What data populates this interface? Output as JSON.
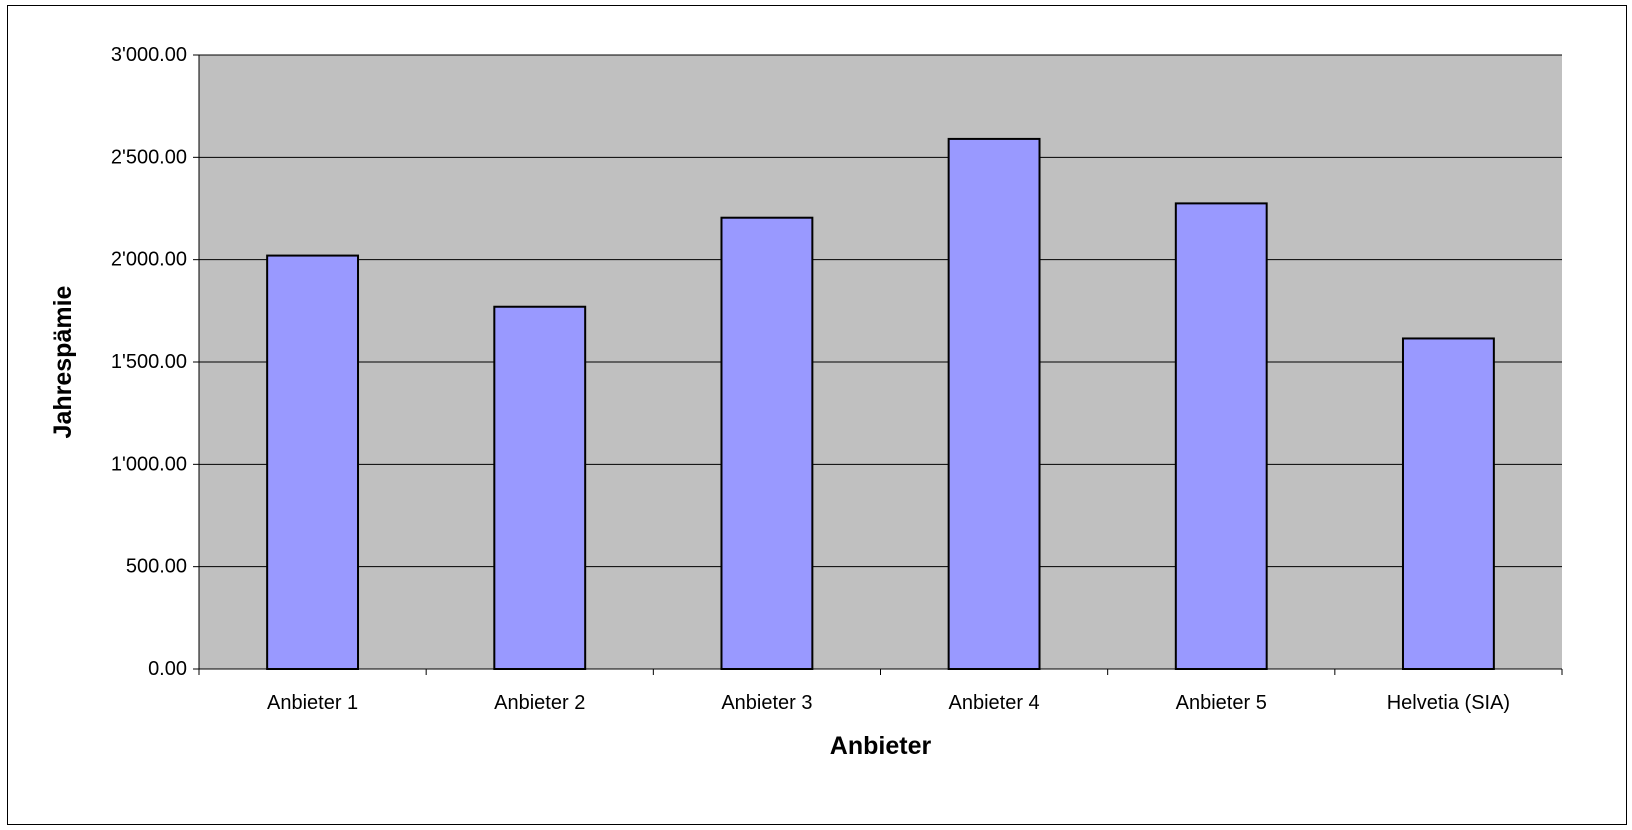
{
  "chart_data": {
    "type": "bar",
    "title": "",
    "xlabel": "Anbieter",
    "ylabel": "Jahrespämie",
    "categories": [
      "Anbieter 1",
      "Anbieter 2",
      "Anbieter 3",
      "Anbieter 4",
      "Anbieter 5",
      "Helvetia (SIA)"
    ],
    "values": [
      2020,
      1770,
      2205,
      2590,
      2275,
      1615
    ],
    "ylim": [
      0,
      3000
    ],
    "yticks": [
      0,
      500,
      1000,
      1500,
      2000,
      2500,
      3000
    ],
    "ytick_labels": [
      "0.00",
      "500.00",
      "1'000.00",
      "1'500.00",
      "2'000.00",
      "2'500.00",
      "3'000.00"
    ],
    "grid": true,
    "legend": "none",
    "colors": {
      "bar_fill": "#9999ff",
      "bar_stroke": "#000000",
      "plot_background": "#c0c0c0",
      "gridline": "#000000"
    }
  }
}
